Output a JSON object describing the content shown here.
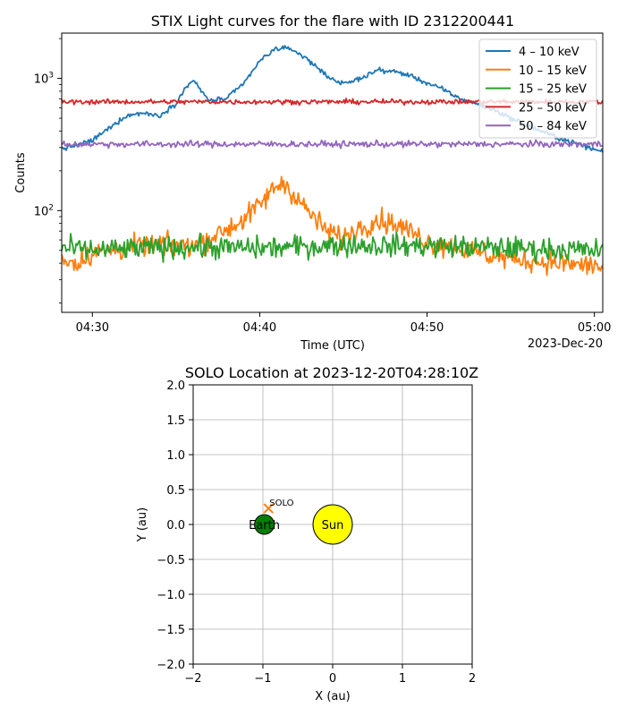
{
  "chart_data": [
    {
      "type": "line",
      "title": "STIX Light curves for the flare with ID 2312200441",
      "xlabel": "Time (UTC)",
      "ylabel": "Counts",
      "x_date_label": "2023-Dec-20",
      "x_range_minutes": [
        "04:28:10",
        "05:00:30"
      ],
      "xticks": [
        {
          "t": 30,
          "label": "04:30"
        },
        {
          "t": 40,
          "label": "04:40"
        },
        {
          "t": 50,
          "label": "04:50"
        },
        {
          "t": 60,
          "label": "05:00"
        }
      ],
      "yscale": "log",
      "ylim": [
        17,
        2200
      ],
      "yticks": [
        {
          "v": 100,
          "base": "10",
          "exp": "2"
        },
        {
          "v": 1000,
          "base": "10",
          "exp": "3"
        }
      ],
      "legend_position": "top-right",
      "grid": false,
      "series": [
        {
          "name": "4 – 10 keV",
          "color": "#1f77b4",
          "noise": 0.03,
          "points": [
            [
              "04:28",
              290
            ],
            [
              "04:29",
              310
            ],
            [
              "04:30",
              340
            ],
            [
              "04:31",
              420
            ],
            [
              "04:32",
              520
            ],
            [
              "04:33",
              550
            ],
            [
              "04:34",
              520
            ],
            [
              "04:35",
              650
            ],
            [
              "04:35:30",
              820
            ],
            [
              "04:36",
              980
            ],
            [
              "04:36:30",
              800
            ],
            [
              "04:37",
              680
            ],
            [
              "04:38",
              700
            ],
            [
              "04:39",
              900
            ],
            [
              "04:40",
              1350
            ],
            [
              "04:41",
              1700
            ],
            [
              "04:42",
              1650
            ],
            [
              "04:43",
              1350
            ],
            [
              "04:44",
              1050
            ],
            [
              "04:45",
              900
            ],
            [
              "04:46",
              1000
            ],
            [
              "04:47",
              1150
            ],
            [
              "04:48",
              1130
            ],
            [
              "04:49",
              1050
            ],
            [
              "04:50",
              920
            ],
            [
              "04:51",
              820
            ],
            [
              "04:52",
              700
            ],
            [
              "04:53",
              640
            ],
            [
              "04:54",
              580
            ],
            [
              "04:55",
              500
            ],
            [
              "04:56",
              440
            ],
            [
              "04:57",
              390
            ],
            [
              "04:58",
              350
            ],
            [
              "04:59",
              320
            ],
            [
              "05:00",
              290
            ],
            [
              "05:00:30",
              280
            ]
          ]
        },
        {
          "name": "10 – 15 keV",
          "color": "#ff7f0e",
          "noise": 0.14,
          "points": [
            [
              "04:28",
              45
            ],
            [
              "04:29",
              40
            ],
            [
              "04:30",
              48
            ],
            [
              "04:32",
              52
            ],
            [
              "04:34",
              55
            ],
            [
              "04:36",
              55
            ],
            [
              "04:37",
              62
            ],
            [
              "04:38",
              72
            ],
            [
              "04:39",
              85
            ],
            [
              "04:40",
              110
            ],
            [
              "04:41",
              155
            ],
            [
              "04:41:30",
              160
            ],
            [
              "04:42",
              135
            ],
            [
              "04:43",
              95
            ],
            [
              "04:44",
              70
            ],
            [
              "04:45",
              62
            ],
            [
              "04:46",
              75
            ],
            [
              "04:47",
              85
            ],
            [
              "04:48",
              80
            ],
            [
              "04:49",
              70
            ],
            [
              "04:50",
              58
            ],
            [
              "04:52",
              52
            ],
            [
              "04:54",
              45
            ],
            [
              "04:56",
              42
            ],
            [
              "04:58",
              40
            ],
            [
              "05:00",
              38
            ],
            [
              "05:00:30",
              37
            ]
          ]
        },
        {
          "name": "15 – 25 keV",
          "color": "#2ca02c",
          "noise": 0.14,
          "points": [
            [
              "04:28",
              52
            ],
            [
              "04:30",
              50
            ],
            [
              "04:35",
              53
            ],
            [
              "04:40",
              52
            ],
            [
              "04:45",
              55
            ],
            [
              "04:50",
              54
            ],
            [
              "04:55",
              52
            ],
            [
              "05:00",
              50
            ],
            [
              "05:00:30",
              50
            ]
          ]
        },
        {
          "name": "25 – 50 keV",
          "color": "#d62728",
          "noise": 0.03,
          "points": [
            [
              "04:28",
              665
            ],
            [
              "05:00:30",
              665
            ]
          ]
        },
        {
          "name": "50 – 84 keV",
          "color": "#9467bd",
          "noise": 0.04,
          "points": [
            [
              "04:28",
              318
            ],
            [
              "05:00:30",
              318
            ]
          ]
        }
      ]
    },
    {
      "type": "scatter",
      "title": "SOLO Location at 2023-12-20T04:28:10Z",
      "xlabel": "X (au)",
      "ylabel": "Y (au)",
      "xlim": [
        -2,
        2
      ],
      "ylim": [
        -2,
        2
      ],
      "xticks": [
        "−2",
        "−1",
        "0",
        "1",
        "2"
      ],
      "yticks": [
        "2.0",
        "1.5",
        "1.0",
        "0.5",
        "0.0",
        "−0.5",
        "−1.0",
        "−1.5",
        "−2.0"
      ],
      "grid": true,
      "bodies": [
        {
          "name": "Sun",
          "x": 0.0,
          "y": 0.0,
          "color": "#ffff00"
        },
        {
          "name": "Earth",
          "x": -0.98,
          "y": 0.0,
          "color": "#008000"
        }
      ],
      "spacecraft": {
        "name": "SOLO",
        "x": -0.92,
        "y": 0.23,
        "marker": "x",
        "color": "#ff7f0e"
      }
    }
  ]
}
